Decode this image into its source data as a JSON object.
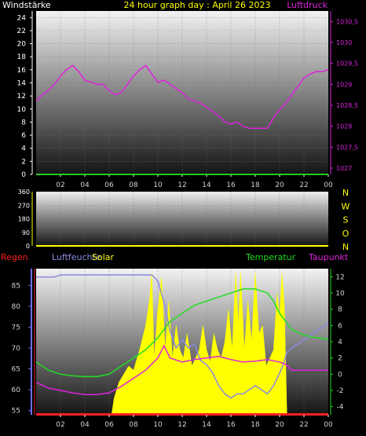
{
  "header": {
    "left": "Windstärke",
    "center": "24 hour graph day : April 26 2023",
    "right": "Luftdruck"
  },
  "colors": {
    "bg": "#000000",
    "wind": "#22cc22",
    "pressure": "#dd22dd",
    "title": "#ffff00",
    "direction": "#ffff00",
    "regen": "#ff2020",
    "humidity": "#8a8ae0",
    "solar": "#ffff00",
    "temperature": "#22dd22",
    "dewpoint": "#dd22dd",
    "axis_left_bottom": "#7070ff",
    "axis_right_bottom": "#22dd22"
  },
  "x_ticks": [
    "02",
    "04",
    "06",
    "08",
    "10",
    "12",
    "14",
    "16",
    "18",
    "20",
    "22",
    "00"
  ],
  "chart_data": [
    {
      "type": "line",
      "name": "wind-pressure",
      "x_unit": "hour",
      "xlim": [
        0,
        24
      ],
      "left_axis": {
        "ticks": [
          0,
          2,
          4,
          6,
          8,
          10,
          12,
          14,
          16,
          18,
          20,
          22,
          24
        ],
        "ylim": [
          0,
          25
        ]
      },
      "right_axis": {
        "ticks": [
          1027,
          1027.5,
          1028,
          1028.5,
          1029,
          1029.5,
          1030,
          1030.5
        ],
        "tick_labels": [
          "1027",
          "1027,5",
          "1028",
          "1028,5",
          "1029",
          "1029,5",
          "1030",
          "1030,5"
        ],
        "ylim": [
          1026.85,
          1030.75
        ]
      },
      "series": [
        {
          "axis": "left",
          "x": [
            0,
            24
          ],
          "y": [
            0,
            0
          ]
        },
        {
          "axis": "right",
          "x": [
            0,
            0.5,
            1,
            1.5,
            2,
            2.5,
            3,
            3.5,
            4,
            4.5,
            5,
            5.5,
            6,
            6.5,
            7,
            7.5,
            8,
            8.5,
            9,
            9.5,
            10,
            10.5,
            11,
            11.5,
            12,
            12.5,
            13,
            13.5,
            14,
            14.5,
            15,
            15.5,
            16,
            16.5,
            17,
            17.5,
            18,
            18.5,
            19,
            19.5,
            20,
            20.5,
            21,
            21.5,
            22,
            22.5,
            23,
            23.5,
            24
          ],
          "y": [
            1028.6,
            1028.75,
            1028.85,
            1029.0,
            1029.2,
            1029.35,
            1029.45,
            1029.3,
            1029.1,
            1029.05,
            1029.0,
            1029.0,
            1028.85,
            1028.75,
            1028.8,
            1029.0,
            1029.2,
            1029.35,
            1029.45,
            1029.25,
            1029.05,
            1029.1,
            1029.0,
            1028.9,
            1028.8,
            1028.65,
            1028.6,
            1028.55,
            1028.45,
            1028.35,
            1028.25,
            1028.1,
            1028.05,
            1028.1,
            1028.0,
            1027.95,
            1027.95,
            1027.95,
            1027.95,
            1028.2,
            1028.4,
            1028.55,
            1028.75,
            1028.95,
            1029.15,
            1029.25,
            1029.3,
            1029.3,
            1029.35
          ]
        }
      ]
    },
    {
      "type": "line",
      "name": "wind-direction",
      "x_unit": "hour",
      "xlim": [
        0,
        24
      ],
      "left_axis": {
        "ticks": [
          0,
          90,
          180,
          270,
          360
        ],
        "ylim": [
          0,
          360
        ]
      },
      "direction_labels": [
        "N",
        "W",
        "S",
        "O",
        "N"
      ],
      "series": []
    },
    {
      "type": "line",
      "name": "climate",
      "x_unit": "hour",
      "xlim": [
        0,
        24
      ],
      "legend": [
        "Regen",
        "Luftfeuchte",
        "Solar",
        "Temperatur",
        "Taupunkt"
      ],
      "left_axis": {
        "ticks": [
          55,
          60,
          65,
          70,
          75,
          80,
          85
        ],
        "ylim": [
          54,
          89
        ]
      },
      "right_axis": {
        "ticks": [
          -4,
          -2,
          0,
          2,
          4,
          6,
          8,
          10,
          12
        ],
        "ylim": [
          -5,
          13
        ]
      },
      "series": [
        {
          "name": "Luftfeuchte",
          "axis": "left",
          "x": [
            0,
            1.5,
            2,
            3,
            4,
            5,
            6,
            7,
            8,
            9,
            9.5,
            10,
            10.3,
            10.6,
            11,
            11.5,
            12,
            12.5,
            13,
            13.5,
            14,
            14.5,
            15,
            15.5,
            16,
            16.5,
            17,
            17.5,
            18,
            18.5,
            19,
            19.5,
            20,
            20.3,
            20.6,
            21,
            21.5,
            22,
            22.5,
            23,
            23.5,
            24
          ],
          "y": [
            87,
            87,
            87.5,
            87.5,
            87.5,
            87.5,
            87.5,
            87.5,
            87.5,
            87.5,
            87.5,
            86,
            83,
            80,
            74,
            70,
            72,
            70,
            71,
            67,
            66,
            64,
            61,
            59,
            58,
            59,
            59,
            60,
            61,
            60,
            59,
            61,
            64,
            66,
            69,
            70,
            71,
            72,
            73,
            74,
            75,
            76
          ]
        },
        {
          "name": "Temperatur",
          "axis": "right",
          "x": [
            0,
            1,
            2,
            3,
            4,
            5,
            6,
            7,
            8,
            9,
            10,
            11,
            12,
            13,
            14,
            15,
            16,
            17,
            18,
            19,
            19.5,
            20,
            20.5,
            21,
            22,
            23,
            24
          ],
          "y": [
            1.5,
            0.5,
            0.0,
            -0.2,
            -0.3,
            -0.3,
            0.0,
            1.0,
            2.0,
            3.0,
            4.5,
            6.5,
            7.5,
            8.5,
            9.0,
            9.5,
            10.0,
            10.5,
            10.5,
            10.0,
            9.0,
            7.5,
            6.5,
            5.5,
            4.8,
            4.5,
            4.3
          ]
        },
        {
          "name": "Taupunkt",
          "axis": "right",
          "x": [
            0,
            1,
            2,
            3,
            4,
            5,
            6,
            7,
            8,
            9,
            10,
            10.5,
            11,
            12,
            13,
            14,
            15,
            16,
            17,
            18,
            19,
            20,
            20.5,
            21,
            22,
            23,
            24
          ],
          "y": [
            -1.0,
            -1.7,
            -2.0,
            -2.3,
            -2.5,
            -2.5,
            -2.3,
            -1.5,
            -0.5,
            0.5,
            2.0,
            3.5,
            2.0,
            1.5,
            1.8,
            2.0,
            2.2,
            1.8,
            1.5,
            1.6,
            1.8,
            1.5,
            1.2,
            0.5,
            0.5,
            0.5,
            0.5
          ]
        },
        {
          "name": "Solar",
          "axis": "right",
          "fill": true,
          "x": [
            0,
            6.2,
            6.4,
            6.8,
            7.2,
            7.6,
            8.0,
            8.5,
            9.0,
            9.3,
            9.5,
            9.7,
            10.0,
            10.3,
            10.6,
            10.9,
            11.2,
            11.5,
            11.8,
            12.1,
            12.4,
            12.8,
            13.1,
            13.4,
            13.7,
            14.0,
            14.3,
            14.6,
            14.9,
            15.2,
            15.5,
            15.8,
            16.1,
            16.4,
            16.6,
            16.8,
            17.1,
            17.4,
            17.7,
            18.0,
            18.3,
            18.6,
            18.9,
            19.2,
            19.5,
            19.8,
            20.0,
            20.2,
            20.4,
            20.6,
            24
          ],
          "y": [
            -5,
            -5,
            -3,
            -1,
            0,
            1,
            0.5,
            3,
            6,
            9,
            12.5,
            2,
            8,
            12,
            3,
            9,
            2,
            6,
            3,
            2,
            5,
            1,
            2,
            3,
            6,
            3,
            1.5,
            5,
            3,
            2,
            4,
            8,
            3,
            12.5,
            6,
            12.5,
            3,
            9,
            4,
            12.5,
            5,
            6,
            1,
            2,
            3,
            10,
            7,
            12.5,
            8,
            -5,
            -5
          ]
        },
        {
          "name": "Regen",
          "axis": "right",
          "x": [
            0,
            24
          ],
          "y": [
            -4.95,
            -4.95
          ]
        }
      ]
    }
  ]
}
